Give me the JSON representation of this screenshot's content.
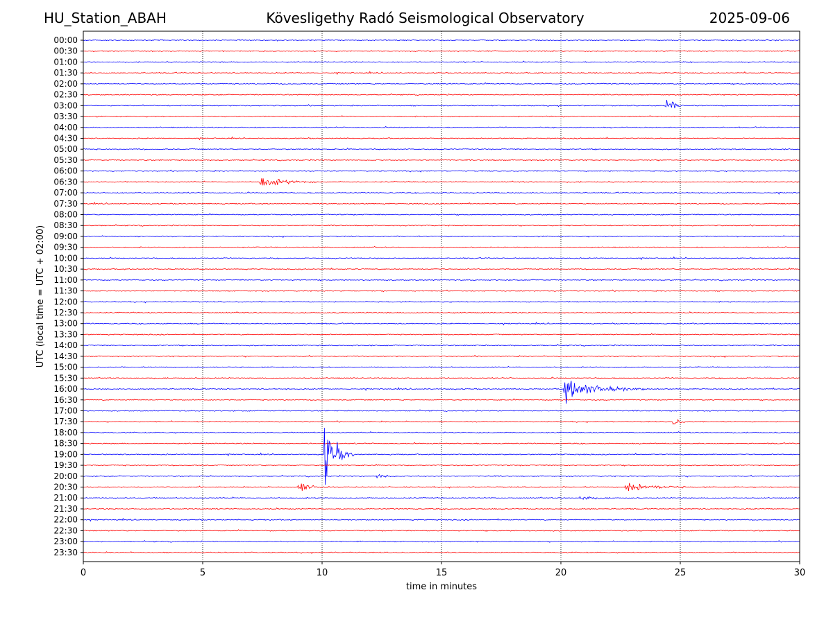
{
  "header": {
    "station": "HU_Station_ABAH",
    "observatory": "Kövesligethy Radó Seismological Observatory",
    "date": "2025-09-06"
  },
  "chart_data": {
    "type": "line",
    "title": "Kövesligethy Radó Seismological Observatory",
    "xlabel": "time in minutes",
    "ylabel": "UTC (local time = UTC + 02:00)",
    "xlim": [
      0,
      30
    ],
    "x_ticks": [
      0,
      5,
      10,
      15,
      20,
      25,
      30
    ],
    "x_tick_labels": [
      "0",
      "5",
      "10",
      "15",
      "20",
      "25",
      "30"
    ],
    "vertical_grid": "dotted at each x tick",
    "colors": {
      "even_rows": "#0000ff",
      "odd_rows": "#ff0000"
    },
    "rows": [
      "00:00",
      "00:30",
      "01:00",
      "01:30",
      "02:00",
      "02:30",
      "03:00",
      "03:30",
      "04:00",
      "04:30",
      "05:00",
      "05:30",
      "06:00",
      "06:30",
      "07:00",
      "07:30",
      "08:00",
      "08:30",
      "09:00",
      "09:30",
      "10:00",
      "10:30",
      "11:00",
      "11:30",
      "12:00",
      "12:30",
      "13:00",
      "13:30",
      "14:00",
      "14:30",
      "15:00",
      "15:30",
      "16:00",
      "16:30",
      "17:00",
      "17:30",
      "18:00",
      "18:30",
      "19:00",
      "19:30",
      "20:00",
      "20:30",
      "21:00",
      "21:30",
      "22:00",
      "22:30",
      "23:00",
      "23:30"
    ],
    "events": [
      {
        "row": "03:00",
        "start_min": 24.4,
        "duration_min": 0.9,
        "amplitude": 0.4
      },
      {
        "row": "06:30",
        "start_min": 7.4,
        "duration_min": 2.3,
        "amplitude": 0.3
      },
      {
        "row": "16:00",
        "start_min": 20.1,
        "duration_min": 3.4,
        "amplitude": 0.65
      },
      {
        "row": "17:30",
        "start_min": 24.7,
        "duration_min": 0.6,
        "amplitude": 0.25
      },
      {
        "row": "19:00",
        "start_min": 10.1,
        "duration_min": 1.3,
        "amplitude": 1.55
      },
      {
        "row": "20:00",
        "start_min": 12.3,
        "duration_min": 0.9,
        "amplitude": 0.15
      },
      {
        "row": "20:30",
        "start_min": 9.0,
        "duration_min": 1.3,
        "amplitude": 0.3
      },
      {
        "row": "20:30",
        "start_min": 22.7,
        "duration_min": 2.6,
        "amplitude": 0.3
      },
      {
        "row": "21:00",
        "start_min": 20.8,
        "duration_min": 1.2,
        "amplitude": 0.18
      }
    ]
  }
}
